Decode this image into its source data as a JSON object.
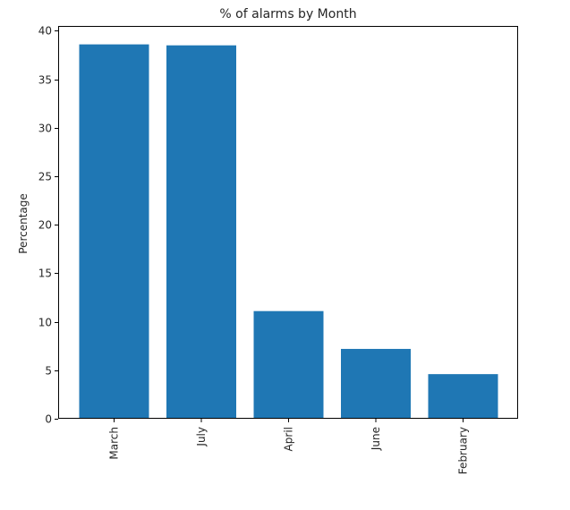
{
  "chart_data": {
    "type": "bar",
    "title": "% of alarms by Month",
    "xlabel": "",
    "ylabel": "Percentage",
    "categories": [
      "March",
      "July",
      "April",
      "June",
      "February"
    ],
    "values": [
      38.6,
      38.5,
      11.1,
      7.2,
      4.6
    ],
    "ylim": [
      0,
      40.5
    ],
    "yticks": [
      0,
      5,
      10,
      15,
      20,
      25,
      30,
      35,
      40
    ],
    "ytick_labels": [
      "0",
      "5",
      "10",
      "15",
      "20",
      "25",
      "30",
      "35",
      "40"
    ],
    "bar_color": "#1f77b4",
    "grid": false,
    "xtick_rotation": "vertical"
  }
}
